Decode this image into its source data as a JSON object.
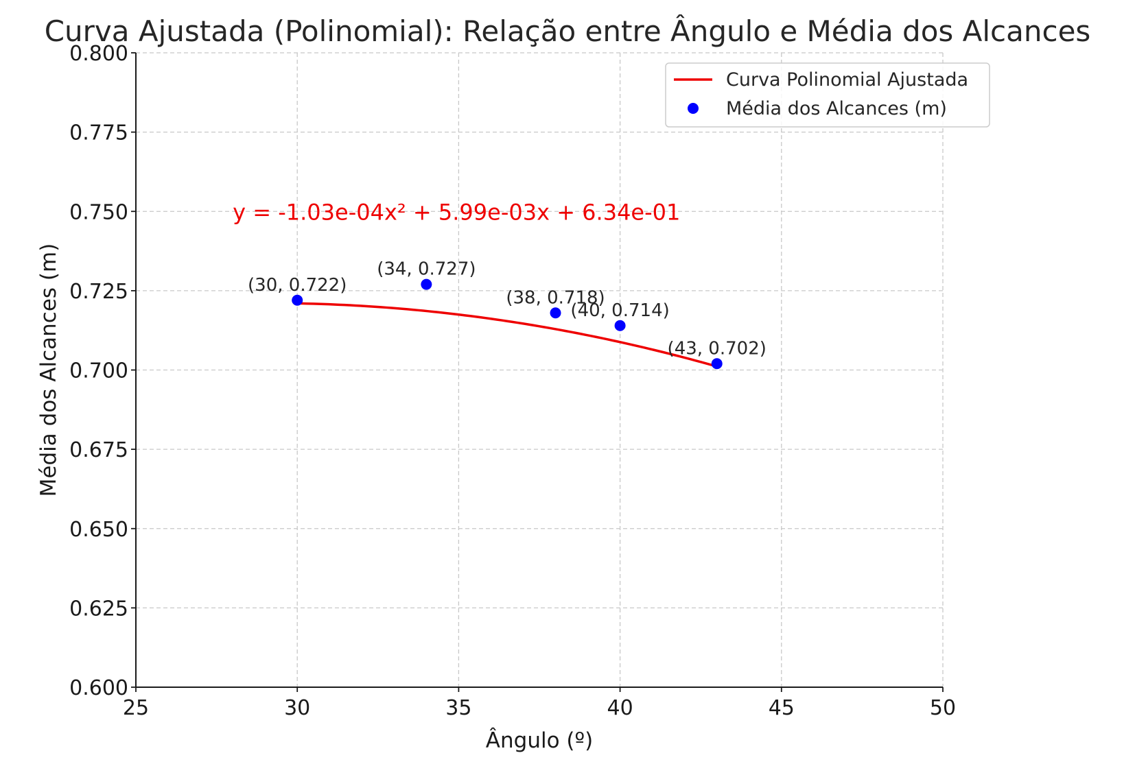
{
  "chart_data": {
    "type": "scatter",
    "title": "Curva Ajustada (Polinomial): Relação entre Ângulo e Média dos Alcances",
    "xlabel": "Ângulo (º)",
    "ylabel": "Média dos Alcances (m)",
    "xlim": [
      25,
      50
    ],
    "ylim": [
      0.6,
      0.8
    ],
    "xticks": [
      25,
      30,
      35,
      40,
      45,
      50
    ],
    "xtick_labels": [
      "25",
      "30",
      "35",
      "40",
      "45",
      "50"
    ],
    "yticks": [
      0.6,
      0.625,
      0.65,
      0.675,
      0.7,
      0.725,
      0.75,
      0.775,
      0.8
    ],
    "ytick_labels": [
      "0.600",
      "0.625",
      "0.650",
      "0.675",
      "0.700",
      "0.725",
      "0.750",
      "0.775",
      "0.800"
    ],
    "grid": true,
    "legend_position": "top-right",
    "series": [
      {
        "name": "Média dos Alcances (m)",
        "kind": "scatter",
        "color": "#0000ff",
        "x": [
          30,
          34,
          38,
          40,
          43
        ],
        "y": [
          0.722,
          0.727,
          0.718,
          0.714,
          0.702
        ],
        "labels": [
          "(30, 0.722)",
          "(34, 0.727)",
          "(38, 0.718)",
          "(40, 0.714)",
          "(43, 0.702)"
        ]
      },
      {
        "name": "Curva Polinomial Ajustada",
        "kind": "line",
        "color": "#ee0000",
        "x_range": [
          30,
          43
        ],
        "coefficients": [
          -0.000103,
          0.00599,
          0.634
        ]
      }
    ],
    "annotations": [
      {
        "text": "y = -1.03e-04x² + 5.99e-03x + 6.34e-01",
        "x": 28,
        "y": 0.75,
        "color": "#ee0000"
      }
    ]
  }
}
